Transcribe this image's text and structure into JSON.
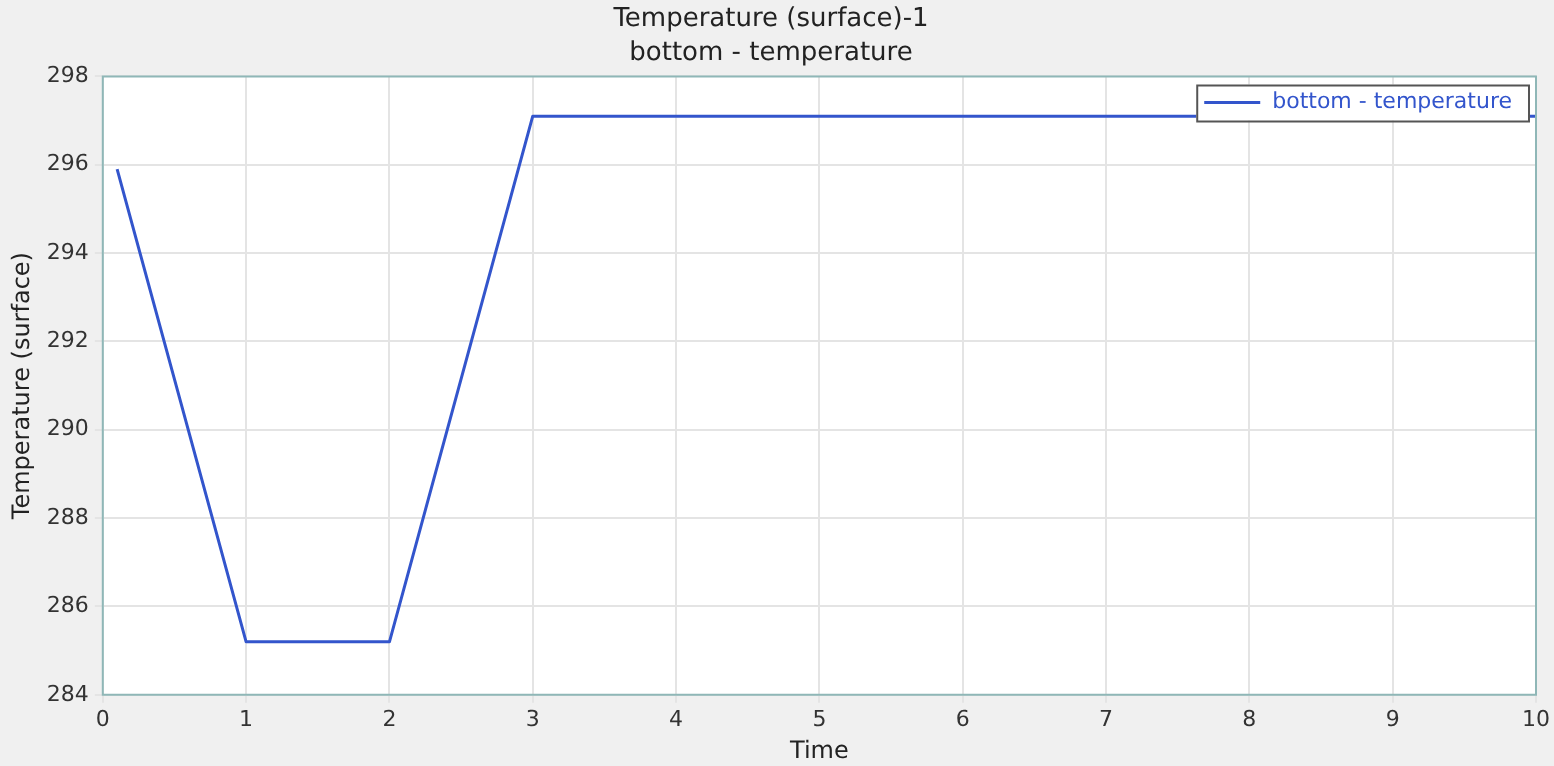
{
  "chart_data": {
    "type": "line",
    "title": "Temperature (surface)-1",
    "subtitle": "bottom - temperature",
    "xlabel": "Time",
    "ylabel": "Temperature (surface)",
    "x": [
      0.1,
      1,
      2,
      3,
      10
    ],
    "series": [
      {
        "name": "bottom - temperature",
        "color": "#3355cc",
        "values": [
          295.9,
          285.2,
          285.2,
          297.1,
          297.1
        ]
      }
    ],
    "xlim": [
      0,
      10
    ],
    "xticks": [
      0,
      1,
      2,
      3,
      4,
      5,
      6,
      7,
      8,
      9,
      10
    ],
    "ylim": [
      284,
      298
    ],
    "yticks": [
      284,
      286,
      288,
      290,
      292,
      294,
      296,
      298
    ],
    "grid": true,
    "legend": "top right",
    "marker": "none",
    "line_style": "solid"
  }
}
